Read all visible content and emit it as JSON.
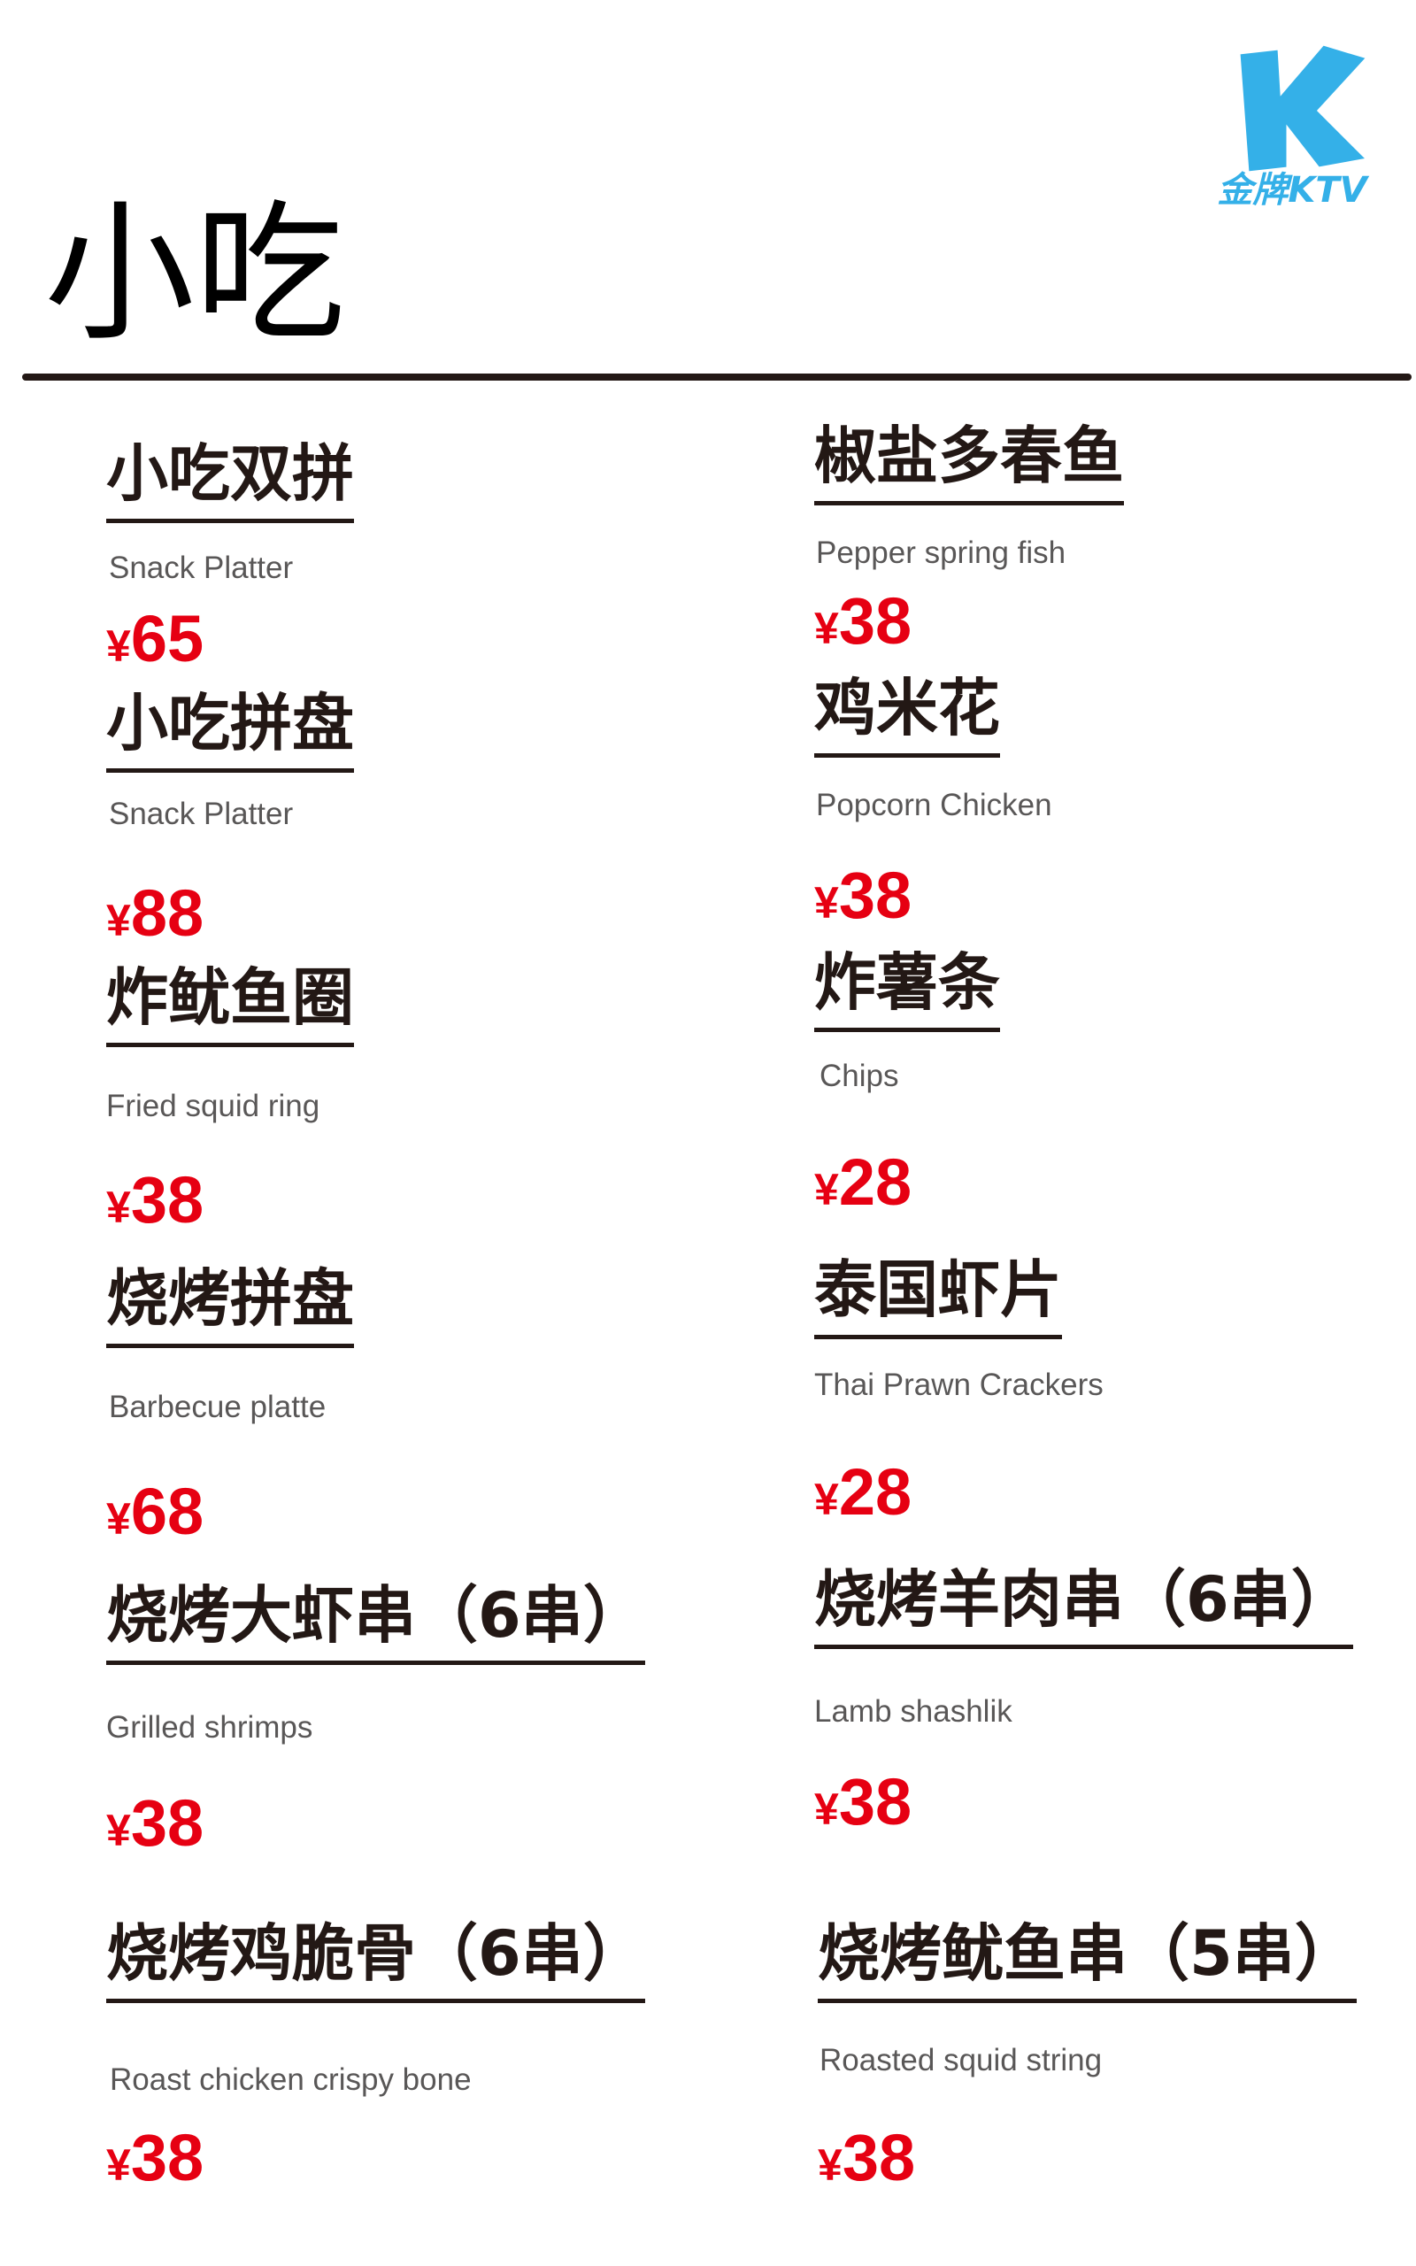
{
  "page": {
    "title": "小吃"
  },
  "logo": {
    "letter": "K",
    "text": "金牌KTV",
    "color": "#34b0e8"
  },
  "colors": {
    "price": "#e60012",
    "name": "#231815",
    "english": "#595757"
  },
  "currency_symbol": "¥",
  "left_items": [
    {
      "name": "小吃双拼",
      "english": "Snack Platter",
      "price": "65"
    },
    {
      "name": "小吃拼盘",
      "english": "Snack Platter",
      "price": "88"
    },
    {
      "name": "炸鱿鱼圈",
      "english": "Fried squid ring",
      "price": "38"
    },
    {
      "name": "烧烤拼盘",
      "english": "Barbecue platte",
      "price": "68"
    },
    {
      "name": "烧烤大虾串（6串）",
      "english": "Grilled shrimps",
      "price": "38"
    },
    {
      "name": "烧烤鸡脆骨（6串）",
      "english": "Roast chicken crispy bone",
      "price": "38"
    }
  ],
  "right_items": [
    {
      "name": "椒盐多春鱼",
      "english": "Pepper spring fish",
      "price": "38"
    },
    {
      "name": "鸡米花",
      "english": "Popcorn Chicken",
      "price": "38"
    },
    {
      "name": "炸薯条",
      "english": "Chips",
      "price": "28"
    },
    {
      "name": "泰国虾片",
      "english": "Thai Prawn Crackers",
      "price": "28"
    },
    {
      "name": "烧烤羊肉串（6串）",
      "english": "Lamb shashlik",
      "price": "38"
    },
    {
      "name": "烧烤鱿鱼串（5串）",
      "english": "Roasted squid string",
      "price": "38"
    }
  ]
}
